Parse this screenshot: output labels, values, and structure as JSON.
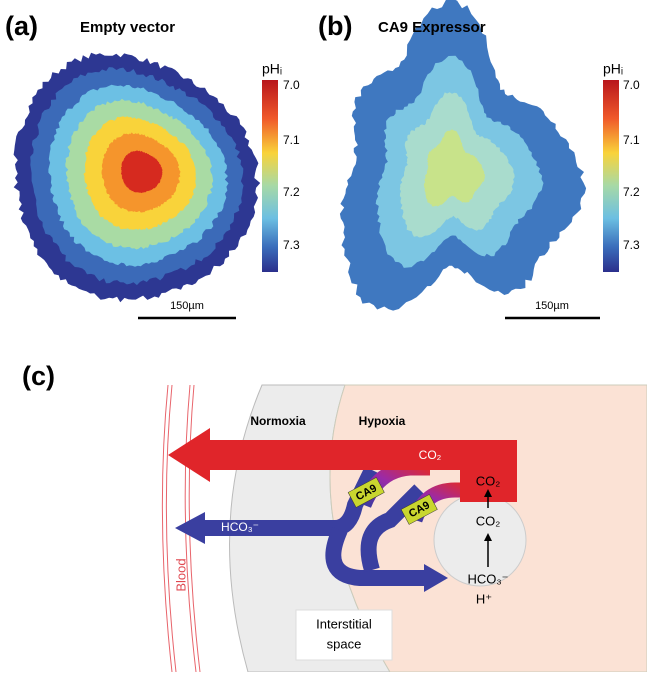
{
  "panels": [
    {
      "label": "(a)",
      "title": "Empty vector",
      "colorbar": {
        "label": "pHᵢ",
        "ticks": [
          "7.0",
          "7.1",
          "7.2",
          "7.3"
        ]
      },
      "scale_bar": "150µm"
    },
    {
      "label": "(b)",
      "title": "CA9 Expressor",
      "colorbar": {
        "label": "pHᵢ",
        "ticks": [
          "7.0",
          "7.1",
          "7.2",
          "7.3"
        ]
      },
      "scale_bar": "150µm"
    }
  ],
  "diagram": {
    "label": "(c)",
    "regions": {
      "normoxia": "Normoxia",
      "hypoxia": "Hypoxia",
      "interstitial": [
        "Interstitial",
        "space"
      ],
      "blood": "Blood"
    },
    "enzymes": [
      "CA9",
      "CA9"
    ],
    "molecules": {
      "co2_out": "CO₂",
      "co2_top": "CO₂",
      "co2_mid": "CO₂",
      "hco3_out": "HCO₃⁻",
      "hco3_in": "HCO₃⁻",
      "proton": "H⁺"
    }
  }
}
